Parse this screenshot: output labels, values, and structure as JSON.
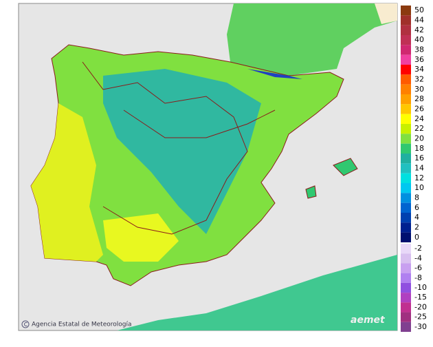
{
  "legend": {
    "positive": [
      {
        "label": 50,
        "color": "#8b3a0f"
      },
      {
        "label": 44,
        "color": "#a0302a"
      },
      {
        "label": 42,
        "color": "#b03040"
      },
      {
        "label": 40,
        "color": "#c03055"
      },
      {
        "label": 38,
        "color": "#d02870"
      },
      {
        "label": 36,
        "color": "#f040a0"
      },
      {
        "label": 34,
        "color": "#ff0000"
      },
      {
        "label": 32,
        "color": "#ff5a00"
      },
      {
        "label": 30,
        "color": "#ff8000"
      },
      {
        "label": 28,
        "color": "#ffa000"
      },
      {
        "label": 26,
        "color": "#ffc800"
      },
      {
        "label": 24,
        "color": "#ffff00"
      },
      {
        "label": 22,
        "color": "#c8f000"
      },
      {
        "label": 20,
        "color": "#80e040"
      },
      {
        "label": 18,
        "color": "#30c870"
      },
      {
        "label": 16,
        "color": "#20b0a0"
      },
      {
        "label": 14,
        "color": "#20c0c0"
      },
      {
        "label": 12,
        "color": "#00e0e0"
      },
      {
        "label": 10,
        "color": "#00c8f0"
      },
      {
        "label": 8,
        "color": "#0090e0"
      },
      {
        "label": 6,
        "color": "#0064d0"
      },
      {
        "label": 4,
        "color": "#0040b0"
      },
      {
        "label": 2,
        "color": "#002090"
      },
      {
        "label": 0,
        "color": "#001070"
      }
    ],
    "negative": [
      {
        "label": -2,
        "color": "#e8d8f8"
      },
      {
        "label": -4,
        "color": "#d8c0f0"
      },
      {
        "label": -6,
        "color": "#c8a0f0"
      },
      {
        "label": -8,
        "color": "#b080f0"
      },
      {
        "label": -10,
        "color": "#9050e0"
      },
      {
        "label": -15,
        "color": "#b040c0"
      },
      {
        "label": -20,
        "color": "#c03090"
      },
      {
        "label": -25,
        "color": "#a03080"
      },
      {
        "label": -30,
        "color": "#804090"
      }
    ]
  },
  "credits": {
    "agency": "Agencia Estatal de Meteorología",
    "logo": "aemet"
  }
}
